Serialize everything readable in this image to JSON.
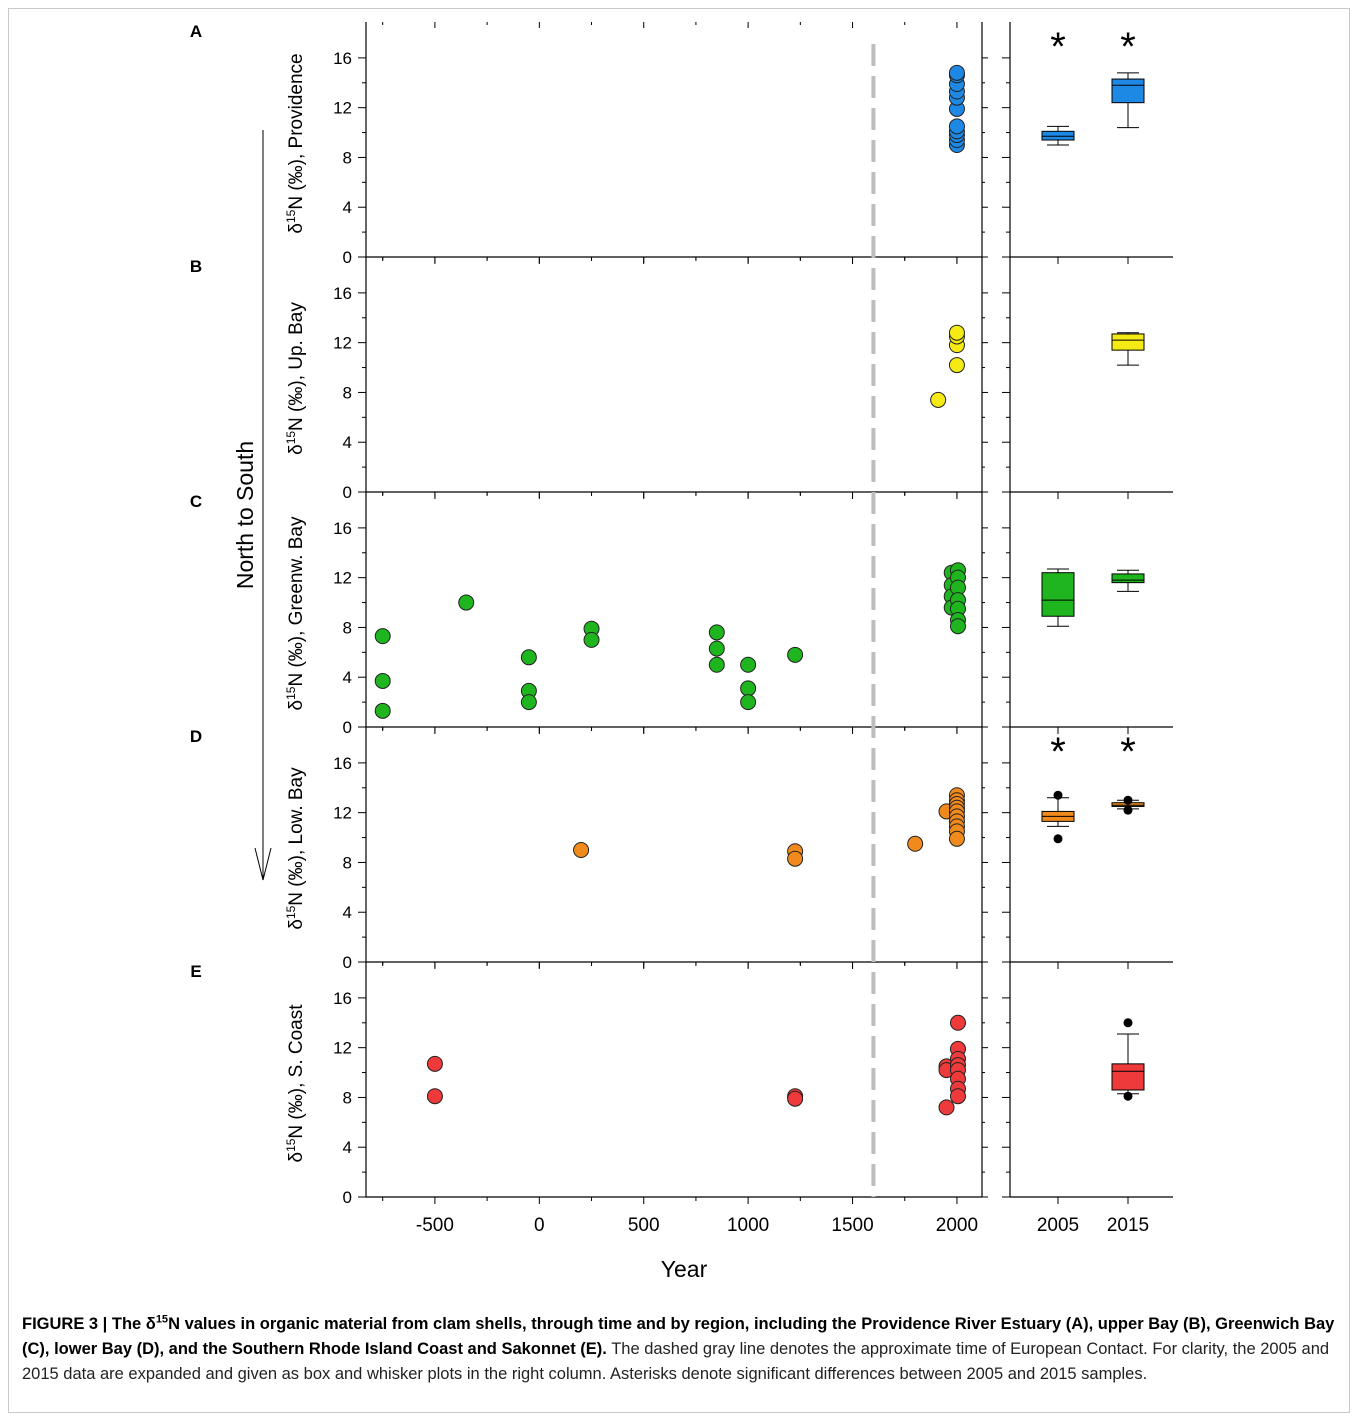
{
  "chart_data": {
    "type": "scatter",
    "xlabel": "Year",
    "x_ticks": [
      "-500",
      "0",
      "500",
      "1000",
      "1500",
      "2000"
    ],
    "x_range": [
      -830,
      2120
    ],
    "y_ticks": [
      "0",
      "4",
      "8",
      "12",
      "16"
    ],
    "y_range": [
      0,
      18
    ],
    "contact_line_year": 1600,
    "side_label": "North to South",
    "box_categories": [
      "2005",
      "2015"
    ],
    "panels": [
      {
        "letter": "A",
        "ylabel_prefix": "δ",
        "ylabel_sup": "15",
        "ylabel_rest": "N (‰), Providence",
        "color": "#1e88e5",
        "points": [
          {
            "x": 2000,
            "y": 9.0
          },
          {
            "x": 2000,
            "y": 9.4
          },
          {
            "x": 2000,
            "y": 9.8
          },
          {
            "x": 2000,
            "y": 10.1
          },
          {
            "x": 2000,
            "y": 10.5
          },
          {
            "x": 2000,
            "y": 11.9
          },
          {
            "x": 2000,
            "y": 12.8
          },
          {
            "x": 2000,
            "y": 13.3
          },
          {
            "x": 2000,
            "y": 13.9
          },
          {
            "x": 2000,
            "y": 14.6
          },
          {
            "x": 2000,
            "y": 14.8
          }
        ],
        "boxes": [
          {
            "cat": "2005",
            "min": 9.0,
            "q1": 9.4,
            "median": 9.7,
            "q3": 10.1,
            "max": 10.5,
            "outliers": []
          },
          {
            "cat": "2015",
            "min": 10.4,
            "q1": 12.4,
            "median": 13.8,
            "q3": 14.3,
            "max": 14.8,
            "outliers": []
          }
        ],
        "asterisks": [
          "2005",
          "2015"
        ],
        "asterisk_symbol": "*"
      },
      {
        "letter": "B",
        "ylabel_prefix": "δ",
        "ylabel_sup": "15",
        "ylabel_rest": "N (‰), Up. Bay",
        "color": "#f5ea14",
        "points": [
          {
            "x": 1910,
            "y": 7.4
          },
          {
            "x": 2000,
            "y": 10.2
          },
          {
            "x": 2000,
            "y": 11.8
          },
          {
            "x": 2000,
            "y": 12.5
          },
          {
            "x": 2000,
            "y": 12.8
          }
        ],
        "boxes": [
          {
            "cat": "2015",
            "min": 10.2,
            "q1": 11.4,
            "median": 12.2,
            "q3": 12.7,
            "max": 12.8,
            "outliers": []
          }
        ],
        "asterisks": [],
        "asterisk_symbol": "*"
      },
      {
        "letter": "C",
        "ylabel_prefix": "δ",
        "ylabel_sup": "15",
        "ylabel_rest": "N (‰), Greenw. Bay",
        "color": "#1fb51f",
        "points": [
          {
            "x": -750,
            "y": 7.3
          },
          {
            "x": -750,
            "y": 3.7
          },
          {
            "x": -750,
            "y": 1.3
          },
          {
            "x": -350,
            "y": 10.0
          },
          {
            "x": -50,
            "y": 5.6
          },
          {
            "x": -50,
            "y": 2.9
          },
          {
            "x": -50,
            "y": 2.0
          },
          {
            "x": 250,
            "y": 7.9
          },
          {
            "x": 250,
            "y": 7.0
          },
          {
            "x": 850,
            "y": 7.6
          },
          {
            "x": 850,
            "y": 6.3
          },
          {
            "x": 850,
            "y": 5.0
          },
          {
            "x": 1000,
            "y": 5.0
          },
          {
            "x": 1000,
            "y": 3.1
          },
          {
            "x": 1000,
            "y": 2.0
          },
          {
            "x": 1225,
            "y": 5.8
          },
          {
            "x": 1975,
            "y": 12.4
          },
          {
            "x": 1975,
            "y": 11.4
          },
          {
            "x": 1975,
            "y": 10.5
          },
          {
            "x": 1975,
            "y": 9.6
          },
          {
            "x": 2005,
            "y": 12.6
          },
          {
            "x": 2005,
            "y": 12.0
          },
          {
            "x": 2005,
            "y": 11.2
          },
          {
            "x": 2005,
            "y": 10.2
          },
          {
            "x": 2005,
            "y": 9.5
          },
          {
            "x": 2005,
            "y": 8.6
          },
          {
            "x": 2005,
            "y": 8.1
          }
        ],
        "boxes": [
          {
            "cat": "2005",
            "min": 8.1,
            "q1": 8.9,
            "median": 10.2,
            "q3": 12.4,
            "max": 12.7,
            "outliers": []
          },
          {
            "cat": "2015",
            "min": 10.9,
            "q1": 11.6,
            "median": 11.8,
            "q3": 12.3,
            "max": 12.6,
            "outliers": []
          }
        ],
        "asterisks": [],
        "asterisk_symbol": "*"
      },
      {
        "letter": "D",
        "ylabel_prefix": "δ",
        "ylabel_sup": "15",
        "ylabel_rest": "N (‰), Low. Bay",
        "color": "#f08a1c",
        "points": [
          {
            "x": 200,
            "y": 9.0
          },
          {
            "x": 1225,
            "y": 8.9
          },
          {
            "x": 1225,
            "y": 8.3
          },
          {
            "x": 1800,
            "y": 9.5
          },
          {
            "x": 1950,
            "y": 12.1
          },
          {
            "x": 2000,
            "y": 13.4
          },
          {
            "x": 2000,
            "y": 13.0
          },
          {
            "x": 2000,
            "y": 12.7
          },
          {
            "x": 2000,
            "y": 12.4
          },
          {
            "x": 2000,
            "y": 12.1
          },
          {
            "x": 2000,
            "y": 11.7
          },
          {
            "x": 2000,
            "y": 11.3
          },
          {
            "x": 2000,
            "y": 10.9
          },
          {
            "x": 2000,
            "y": 10.5
          },
          {
            "x": 2000,
            "y": 9.9
          }
        ],
        "boxes": [
          {
            "cat": "2005",
            "min": 10.9,
            "q1": 11.3,
            "median": 11.7,
            "q3": 12.1,
            "max": 13.2,
            "outliers": [
              13.4,
              9.9
            ]
          },
          {
            "cat": "2015",
            "min": 12.3,
            "q1": 12.5,
            "median": 12.6,
            "q3": 12.8,
            "max": 13.0,
            "outliers": [
              13.0,
              12.2
            ]
          }
        ],
        "asterisks": [
          "2005",
          "2015"
        ],
        "asterisk_symbol": "*"
      },
      {
        "letter": "E",
        "ylabel_prefix": "δ",
        "ylabel_sup": "15",
        "ylabel_rest": "N (‰), S. Coast",
        "color": "#ee3a3a",
        "points": [
          {
            "x": -500,
            "y": 10.7
          },
          {
            "x": -500,
            "y": 8.1
          },
          {
            "x": 1225,
            "y": 8.1
          },
          {
            "x": 1225,
            "y": 7.9
          },
          {
            "x": 1950,
            "y": 10.5
          },
          {
            "x": 1950,
            "y": 10.2
          },
          {
            "x": 1950,
            "y": 7.2
          },
          {
            "x": 2005,
            "y": 14.0
          },
          {
            "x": 2005,
            "y": 11.9
          },
          {
            "x": 2005,
            "y": 11.1
          },
          {
            "x": 2005,
            "y": 10.6
          },
          {
            "x": 2005,
            "y": 10.2
          },
          {
            "x": 2005,
            "y": 9.5
          },
          {
            "x": 2005,
            "y": 8.7
          },
          {
            "x": 2005,
            "y": 8.1
          }
        ],
        "boxes": [
          {
            "cat": "2015",
            "min": 8.3,
            "q1": 8.6,
            "median": 10.1,
            "q3": 10.7,
            "max": 13.1,
            "outliers": [
              14.0,
              8.1
            ]
          }
        ],
        "asterisks": [],
        "asterisk_symbol": "*"
      }
    ]
  },
  "caption": {
    "bold_prefix": "FIGURE 3 | The δ",
    "bold_sup": "15",
    "bold_rest": "N values in organic material from clam shells, through time and by region, including the Providence River Estuary (A), upper Bay (B), Greenwich Bay (C), lower Bay (D), and the Southern Rhode Island Coast and Sakonnet (E).",
    "text": "The dashed gray line denotes the approximate time of European Contact. For clarity, the 2005 and 2015 data are expanded and given as box and whisker plots in the right column. Asterisks denote significant differences between 2005 and 2015 samples."
  }
}
